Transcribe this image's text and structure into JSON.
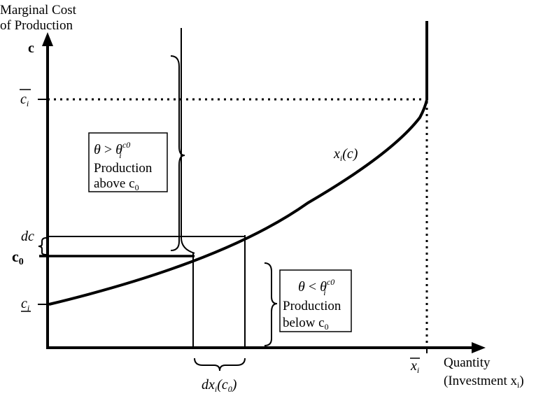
{
  "y_axis": {
    "title_line1": "Marginal Cost",
    "title_line2": "of Production",
    "symbol": "c"
  },
  "x_axis": {
    "title_line1": "Quantity",
    "title_line2": "(Investment x",
    "title_sub": "i",
    "title_close": ")"
  },
  "ticks": {
    "c_bar": "c",
    "c_bar_sub": "i",
    "c0": "c",
    "c0_sub": "0",
    "dc": "dc",
    "c_under": "c",
    "c_under_sub": "i",
    "x_bar": "x",
    "x_bar_sub": "i"
  },
  "curve_label": {
    "x": "x",
    "sub": "i",
    "arg": "(c)"
  },
  "box_upper": {
    "theta": "θ",
    "relation": " > ",
    "theta2": "θ",
    "sub": "i",
    "sup": "c0",
    "line2": "Production",
    "line3": "above c",
    "line3_sub": "0"
  },
  "box_lower": {
    "theta": "θ",
    "relation": " < ",
    "theta2": "θ",
    "sub": "i",
    "sup": "c0",
    "line2": "Production",
    "line3": "below c",
    "line3_sub": "0"
  },
  "dx_label": {
    "d": "dx",
    "sub": "i",
    "arg_open": "(c",
    "arg_sub": "0",
    "arg_close": ")"
  }
}
